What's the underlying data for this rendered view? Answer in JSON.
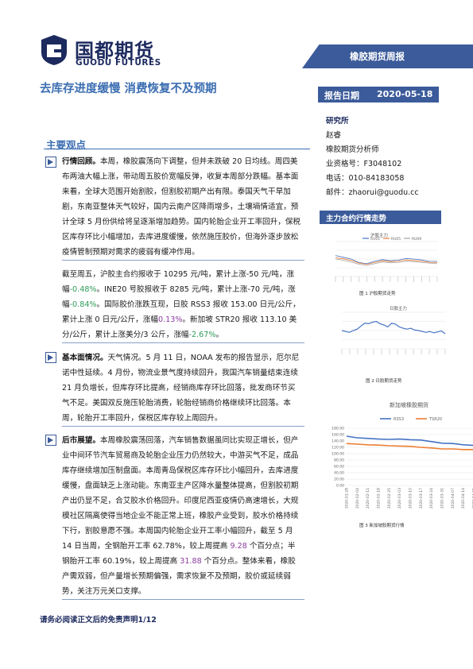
{
  "header": {
    "logo_cn": "国都期货",
    "logo_en": "GUODU FUTURES",
    "report_type": "橡胶期货周报",
    "headline": "去库存进度缓慢 消费恢复不及预期",
    "date_label": "报告日期",
    "date_value": "2020-05-18"
  },
  "contact": {
    "title": "研究所",
    "name": "赵睿",
    "role": "橡胶期货分析师",
    "license": "业资格号：F3048102",
    "phone": "电话：010-84183058",
    "email": "邮件：zhaorui@guodu.cc"
  },
  "main": {
    "section_title": "主要观点",
    "p1_lead": "行情回顾。",
    "p1_body": "本周，橡胶震荡向下调整，但并未跌破 20 日均线。周四美布两油大幅上涨，带动周五胶价宽幅反弹，收复本周部分跌幅。基本面来看，全球大范围开始割胶，但割胶初期产出有限。泰国天气干旱加剧，东南亚整体天气较好，国内云南产区降雨增多，土壤墒情适宜，预计全球 5 月份供给将呈逐渐增加趋势。国内轮胎企业开工率回升，保税区库存环比小幅增加，去库进度缓慢，依然施压胶价，但海外逐步放松疫情管制预期对需求的疲弱有缓冲作用。",
    "p2_a": "截至周五，沪胶主合约报收于 10295 元/吨，累计上涨-50 元/吨，涨幅",
    "p2_b": "-0.48%",
    "p2_c": "。INE20 号胶报收于 8285 元/吨，累计上涨-70 元/吨，涨幅",
    "p2_d": "-0.84%",
    "p2_e": "。国际胶价涨跌互现，日胶 RSS3 报收 153.00 日元/公斤，累计上涨 0 日元/公斤，涨幅",
    "p2_f": "0.13%",
    "p2_g": "。新加坡 STR20 报收 113.10 美分/公斤，累计上涨美分/3 公斤，涨幅",
    "p2_h": "-2.67%",
    "p2_i": "。",
    "p3_lead": "基本面情况。",
    "p3_body": "天气情况。5 月 11 日，NOAA 发布的报告显示，厄尔尼诺中性延续。4 月份，物流业景气度持续回升，我国汽车销量结束连续 21 月负增长，但库存环比提高，经销商库存环比回落，批发商环节买气不足。美国双反施压轮胎消费，轮胎经销商价格继续环比回落。本周，轮胎开工率回升，保税区库存较上周回升。",
    "p4_lead": "后市展望。",
    "p4_a": "本周橡胶震荡回落，汽车销售数据虽同比实现正增长，但产业中间环节汽车贸易商及轮胎企业压力仍然较大，中游买气不足，成品库存继续增加压制盘面。本周青岛保税区库存环比小幅回升，去库进度缓慢，盘面缺乏上涨动能。东南亚主产区降水量整体提高，但割胶初期产出仍显不足，合艾胶水价格回升。印度尼西亚疫情仍高速增长，大规模社区隔离使得当地企业不能正常上班，橡胶产业受到，胶水价格持续下行，割胶意愿不强。本周国内轮胎企业开工率小幅回升，截至 5 月 14 日当周，全钢胎开工率 62.78%，较上周提高 ",
    "p4_b": "9.28",
    "p4_c": " 个百分点；半钢胎开工率 60.19%，较上周提高 ",
    "p4_d": "31.88",
    "p4_e": " 个百分点。整体来看，橡胶产需双弱，但产量增长预期偏强，需求恢复不及预期，胶价或延续弱势，关注万元关口支撑。",
    "disclaimer": "请务必阅读正文后的免责声明1/12"
  },
  "sidebar": {
    "title": "主力合约行情走势",
    "fig1_title": "沪胶主力",
    "fig1_caption": "图 1 沪胶期货走势",
    "fig2_title": "日胶主力",
    "fig2_caption": "图 2 日胶期货走势",
    "fig3_caption": "图 3 新加坡胶期货行情"
  },
  "chart_data": [
    {
      "type": "line",
      "title": "沪胶主力",
      "legend": "top",
      "series": [
        {
          "name": "RU01",
          "color": "#4472c4",
          "values": [
            10800,
            10650,
            10500,
            10200,
            10100,
            10300,
            10450,
            10350,
            10400,
            10550,
            10500,
            10420,
            10300,
            10295
          ]
        },
        {
          "name": "RU05",
          "color": "#ed7d31",
          "values": [
            10600,
            10520,
            10380,
            10150,
            10050,
            10200,
            10350,
            10280,
            10300,
            10420,
            10380,
            10300,
            10220,
            10200
          ]
        },
        {
          "name": "RU09",
          "color": "#a5a5a5",
          "values": [
            10500,
            10400,
            10250,
            10050,
            9950,
            10100,
            10250,
            10180,
            10200,
            10300,
            10280,
            10200,
            10150,
            10100
          ]
        }
      ],
      "ylim": [
        9000,
        12000
      ]
    },
    {
      "type": "line",
      "title": "日胶主力",
      "series": [
        {
          "name": "日胶主力",
          "color": "#4472c4",
          "values": [
            160,
            158,
            156,
            160,
            163,
            170,
            176,
            175,
            178,
            180,
            175,
            172,
            168,
            176,
            174,
            168,
            165,
            163,
            165,
            161,
            160,
            158,
            156,
            158,
            155,
            157,
            159,
            153
          ]
        }
      ],
      "ylim": [
        120,
        200
      ]
    },
    {
      "type": "line",
      "title": "新加坡橡胶期货",
      "legend": "top",
      "x": [
        "2020-01-28",
        "2020-02-04",
        "2020-02-11",
        "2020-02-18",
        "2020-02-25",
        "2020-03-03",
        "2020-03-10",
        "2020-03-17",
        "2020-03-24",
        "2020-03-31",
        "2020-04-07",
        "2020-04-14",
        "2020-04-21"
      ],
      "series": [
        {
          "name": "RSS3",
          "color": "#4472c4",
          "values": [
            155,
            150,
            148,
            146,
            145,
            146,
            144,
            143,
            138,
            133,
            132,
            128,
            126
          ]
        },
        {
          "name": "TSR20",
          "color": "#ed7d31",
          "values": [
            132,
            130,
            128,
            127,
            125,
            124,
            123,
            120,
            118,
            115,
            115,
            113,
            113
          ]
        }
      ],
      "yticks": [
        "0.00",
        "20.00",
        "40.00",
        "60.00",
        "80.00",
        "100.00",
        "120.00",
        "140.00",
        "160.00",
        "180.00"
      ],
      "ylim": [
        0,
        180
      ],
      "title_shown": "新加坡橡胶期货"
    }
  ]
}
